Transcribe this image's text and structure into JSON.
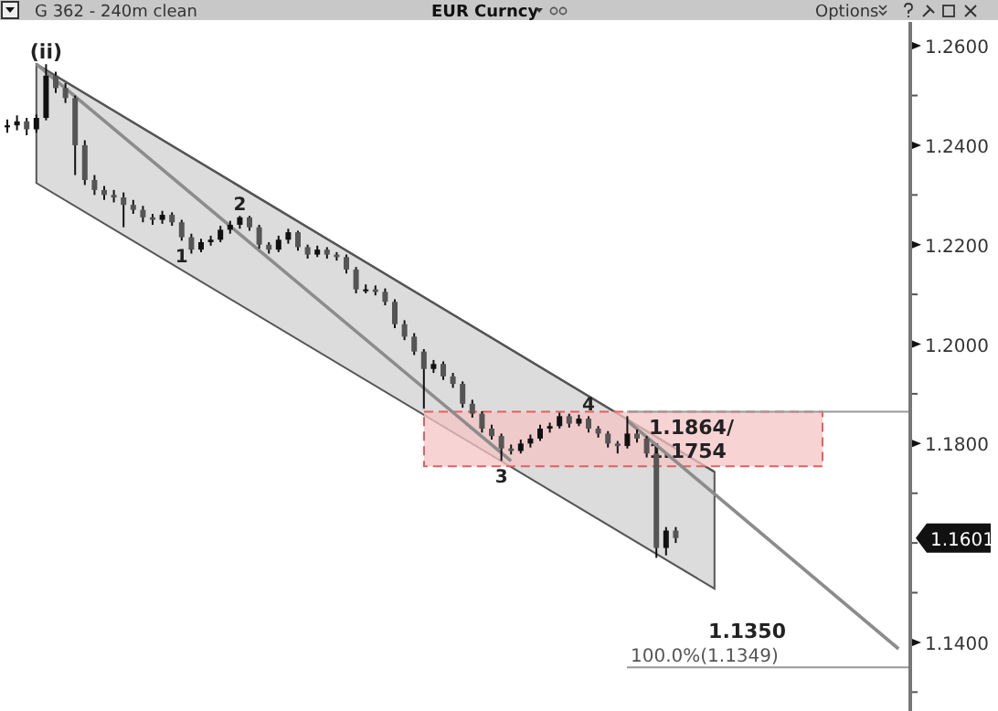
{
  "chart_data": {
    "type": "candlestick",
    "title": "EUR Curncy",
    "subtitle": "G 362 - 240m clean",
    "categories": [
      null,
      null,
      null,
      null,
      null,
      null,
      null,
      null,
      null,
      null,
      null,
      null,
      null,
      null,
      null,
      null,
      null,
      null,
      null,
      null,
      null,
      null,
      null,
      null,
      null,
      null,
      null,
      null,
      null,
      null,
      null,
      null,
      null,
      null,
      null,
      null,
      null,
      null,
      null,
      null,
      null,
      null,
      null,
      null,
      null,
      null,
      null,
      null,
      null,
      null,
      null,
      null,
      null,
      null,
      null,
      null,
      null,
      null,
      null,
      null,
      null,
      null,
      null,
      null,
      null,
      null,
      null,
      null,
      null,
      null,
      null,
      null,
      null,
      null,
      null,
      null,
      null,
      null,
      null,
      null,
      null,
      null,
      null,
      null,
      null,
      null,
      null,
      null,
      null,
      null,
      null,
      null,
      null
    ],
    "ohlc": [
      [
        1.2436,
        1.2452,
        1.2425,
        1.244
      ],
      [
        1.244,
        1.246,
        1.243,
        1.2448
      ],
      [
        1.2448,
        1.2455,
        1.242,
        1.2432
      ],
      [
        1.2432,
        1.2462,
        1.2425,
        1.2455
      ],
      [
        1.2455,
        1.2563,
        1.245,
        1.254
      ],
      [
        1.254,
        1.2548,
        1.2505,
        1.2515
      ],
      [
        1.2515,
        1.2525,
        1.2485,
        1.2495
      ],
      [
        1.2495,
        1.25,
        1.234,
        1.24
      ],
      [
        1.24,
        1.241,
        1.232,
        1.233
      ],
      [
        1.233,
        1.234,
        1.23,
        1.231
      ],
      [
        1.231,
        1.2318,
        1.229,
        1.23
      ],
      [
        1.23,
        1.231,
        1.2285,
        1.2295
      ],
      [
        1.2295,
        1.2305,
        1.2235,
        1.228
      ],
      [
        1.228,
        1.229,
        1.2262,
        1.227
      ],
      [
        1.227,
        1.2278,
        1.2245,
        1.2255
      ],
      [
        1.2255,
        1.2262,
        1.224,
        1.225
      ],
      [
        1.225,
        1.2268,
        1.2242,
        1.226
      ],
      [
        1.226,
        1.2265,
        1.2238,
        1.2245
      ],
      [
        1.2245,
        1.225,
        1.2208,
        1.2215
      ],
      [
        1.2215,
        1.2222,
        1.2182,
        1.219
      ],
      [
        1.219,
        1.2212,
        1.2185,
        1.2205
      ],
      [
        1.2205,
        1.2218,
        1.2198,
        1.221
      ],
      [
        1.221,
        1.2238,
        1.2205,
        1.223
      ],
      [
        1.223,
        1.2248,
        1.2222,
        1.224
      ],
      [
        1.224,
        1.2258,
        1.2232,
        1.2255
      ],
      [
        1.2255,
        1.2258,
        1.2228,
        1.2235
      ],
      [
        1.2235,
        1.224,
        1.2192,
        1.22
      ],
      [
        1.22,
        1.2205,
        1.2182,
        1.219
      ],
      [
        1.219,
        1.2218,
        1.2185,
        1.221
      ],
      [
        1.221,
        1.2232,
        1.2202,
        1.2225
      ],
      [
        1.2225,
        1.2228,
        1.2188,
        1.2195
      ],
      [
        1.2195,
        1.22,
        1.2172,
        1.218
      ],
      [
        1.218,
        1.2198,
        1.2175,
        1.219
      ],
      [
        1.219,
        1.2195,
        1.2172,
        1.218
      ],
      [
        1.218,
        1.2185,
        1.2168,
        1.2175
      ],
      [
        1.2175,
        1.218,
        1.2142,
        1.215
      ],
      [
        1.215,
        1.2155,
        1.2102,
        1.211
      ],
      [
        1.211,
        1.212,
        1.2102,
        1.211
      ],
      [
        1.211,
        1.2118,
        1.2098,
        1.2105
      ],
      [
        1.2105,
        1.2112,
        1.2078,
        1.2085
      ],
      [
        1.2085,
        1.209,
        1.2032,
        1.204
      ],
      [
        1.204,
        1.2048,
        1.2008,
        1.2015
      ],
      [
        1.2015,
        1.2022,
        1.1978,
        1.1985
      ],
      [
        1.1985,
        1.199,
        1.187,
        1.195
      ],
      [
        1.195,
        1.1968,
        1.1942,
        1.196
      ],
      [
        1.196,
        1.1965,
        1.1928,
        1.1935
      ],
      [
        1.1935,
        1.1942,
        1.1912,
        1.192
      ],
      [
        1.192,
        1.1925,
        1.1872,
        1.188
      ],
      [
        1.188,
        1.1888,
        1.1852,
        1.186
      ],
      [
        1.186,
        1.1865,
        1.1822,
        1.183
      ],
      [
        1.183,
        1.1838,
        1.1808,
        1.1815
      ],
      [
        1.1815,
        1.182,
        1.1765,
        1.179
      ],
      [
        1.179,
        1.1798,
        1.1778,
        1.1785
      ],
      [
        1.1785,
        1.1808,
        1.178,
        1.18
      ],
      [
        1.18,
        1.1818,
        1.1792,
        1.181
      ],
      [
        1.181,
        1.1838,
        1.1805,
        1.183
      ],
      [
        1.183,
        1.1842,
        1.1822,
        1.1835
      ],
      [
        1.1835,
        1.1862,
        1.183,
        1.1855
      ],
      [
        1.1855,
        1.186,
        1.1832,
        1.184
      ],
      [
        1.184,
        1.1858,
        1.1835,
        1.185
      ],
      [
        1.185,
        1.1855,
        1.1822,
        1.183
      ],
      [
        1.183,
        1.1835,
        1.1812,
        1.182
      ],
      [
        1.182,
        1.1825,
        1.1792,
        1.18
      ],
      [
        1.18,
        1.1805,
        1.178,
        1.1795
      ],
      [
        1.1795,
        1.1855,
        1.179,
        1.182
      ],
      [
        1.182,
        1.1828,
        1.1802,
        1.181
      ],
      [
        1.181,
        1.1815,
        1.1772,
        1.178
      ],
      [
        1.178,
        1.1785,
        1.157,
        1.159
      ],
      [
        1.159,
        1.1632,
        1.1575,
        1.1625
      ],
      [
        1.1625,
        1.1632,
        1.16,
        1.161
      ],
      null,
      null,
      null,
      null,
      null,
      null,
      null,
      null,
      null,
      null,
      null,
      null,
      null,
      null,
      null,
      null,
      null,
      null,
      null,
      null,
      null,
      null,
      null
    ],
    "series": [
      {
        "type": "line",
        "values": [
          null,
          null,
          null,
          1.2563,
          null,
          null,
          null,
          null,
          null,
          null,
          null,
          null,
          null,
          null,
          null,
          null,
          null,
          null,
          null,
          null,
          null,
          null,
          null,
          null,
          null,
          null,
          null,
          null,
          null,
          null,
          null,
          null,
          null,
          null,
          null,
          null,
          null,
          null,
          null,
          null,
          null,
          null,
          null,
          null,
          null,
          null,
          null,
          null,
          null,
          null,
          null,
          null,
          null,
          null,
          null,
          null,
          null,
          null,
          null,
          null,
          null,
          null,
          null,
          null,
          null,
          null,
          null,
          null,
          null,
          null,
          null,
          null,
          null,
          1.1743,
          null,
          null,
          null,
          null,
          null,
          null,
          null,
          null,
          null,
          null,
          null,
          null,
          null,
          null,
          null,
          null,
          null,
          null,
          null
        ],
        "upper": [
          null,
          null,
          null,
          1.2563,
          null,
          null,
          null,
          null,
          null,
          null,
          null,
          null,
          null,
          null,
          null,
          null,
          null,
          null,
          null,
          null,
          null,
          null,
          null,
          null,
          null,
          null,
          null,
          null,
          null,
          null,
          null,
          null,
          null,
          null,
          null,
          null,
          null,
          null,
          null,
          null,
          null,
          null,
          null,
          null,
          null,
          null,
          null,
          null,
          null,
          null,
          null,
          null,
          null,
          null,
          null,
          null,
          null,
          null,
          null,
          null,
          null,
          null,
          null,
          null,
          null,
          null,
          null,
          null,
          null,
          null,
          null,
          null,
          null,
          1.1743,
          null,
          null,
          null,
          null,
          null,
          null,
          null,
          null,
          null,
          null,
          null,
          null,
          null,
          null,
          null,
          null,
          null,
          null,
          null
        ],
        "lower": [
          null,
          null,
          null,
          1.2324,
          null,
          null,
          null,
          null,
          null,
          null,
          null,
          null,
          null,
          null,
          null,
          null,
          null,
          null,
          null,
          null,
          null,
          null,
          null,
          null,
          null,
          null,
          null,
          null,
          null,
          null,
          null,
          null,
          null,
          null,
          null,
          null,
          null,
          null,
          null,
          null,
          null,
          null,
          null,
          null,
          null,
          null,
          null,
          null,
          null,
          null,
          null,
          null,
          null,
          null,
          null,
          null,
          null,
          null,
          null,
          null,
          null,
          null,
          null,
          null,
          null,
          null,
          null,
          null,
          null,
          null,
          null,
          null,
          null,
          1.1508,
          null,
          null,
          null,
          null,
          null,
          null,
          null,
          null,
          null,
          null,
          null,
          null,
          null,
          null,
          null,
          null,
          null,
          null,
          null
        ],
        "color": "#555555"
      },
      {
        "type": "line",
        "values": [
          null,
          null,
          null,
          1.2563,
          null,
          null,
          null,
          null,
          null,
          null,
          null,
          null,
          null,
          null,
          null,
          null,
          null,
          null,
          null,
          null,
          null,
          null,
          null,
          null,
          null,
          null,
          null,
          null,
          null,
          null,
          null,
          null,
          null,
          null,
          null,
          null,
          null,
          null,
          null,
          null,
          null,
          null,
          null,
          null,
          null,
          null,
          null,
          null,
          null,
          null,
          null,
          null,
          1.1765,
          null,
          null,
          null,
          null,
          null,
          null,
          null,
          null,
          null,
          null,
          null,
          null,
          null,
          null,
          null,
          null,
          null,
          null,
          null,
          null,
          null,
          null,
          null,
          null,
          null,
          null,
          null,
          null,
          null,
          null,
          null,
          null,
          null,
          null,
          null,
          null,
          null,
          null,
          null,
          null
        ],
        "color": "#8c8c8c"
      },
      {
        "type": "line",
        "values": [
          null,
          null,
          null,
          null,
          null,
          null,
          null,
          null,
          null,
          null,
          null,
          null,
          null,
          null,
          null,
          null,
          null,
          null,
          null,
          null,
          null,
          null,
          null,
          null,
          null,
          null,
          null,
          null,
          null,
          null,
          null,
          null,
          null,
          null,
          null,
          null,
          null,
          null,
          null,
          null,
          null,
          null,
          null,
          null,
          null,
          null,
          null,
          null,
          null,
          null,
          null,
          null,
          null,
          null,
          null,
          null,
          null,
          null,
          null,
          null,
          null,
          null,
          null,
          null,
          1.1846,
          null,
          null,
          null,
          null,
          null,
          null,
          null,
          null,
          null,
          null,
          null,
          null,
          null,
          null,
          null,
          null,
          null,
          null,
          null,
          null,
          null,
          null,
          null,
          null,
          null,
          null,
          null,
          1.1387
        ],
        "color": "#8c8c8c"
      }
    ],
    "ylim": [
      1.1262,
      1.2648
    ],
    "yticks": [
      {
        "value": 1.13,
        "label": null
      },
      {
        "value": 1.14,
        "label": "1.1400"
      },
      {
        "value": 1.15,
        "label": null
      },
      {
        "value": 1.16,
        "label": null
      },
      {
        "value": 1.17,
        "label": null
      },
      {
        "value": 1.18,
        "label": "1.1800"
      },
      {
        "value": 1.19,
        "label": null
      },
      {
        "value": 1.2,
        "label": "1.2000"
      },
      {
        "value": 1.21,
        "label": null
      },
      {
        "value": 1.22,
        "label": "1.2200"
      },
      {
        "value": 1.23,
        "label": null
      },
      {
        "value": 1.24,
        "label": "1.2400"
      },
      {
        "value": 1.25,
        "label": null
      },
      {
        "value": 1.26,
        "label": "1.2600"
      }
    ],
    "tick_labels": "y",
    "bands": [
      {
        "axis": "y",
        "from": 1.1754,
        "to": 1.1864,
        "label": "1.1864/\n1.1754",
        "color": "#f6c4c4"
      }
    ],
    "ref_lines": [
      {
        "axis": "y",
        "value": 1.1864,
        "label": null,
        "color": "#999999"
      },
      {
        "axis": "y",
        "value": 1.135,
        "label": "1.1350",
        "color": "#999999"
      }
    ],
    "annotations": [
      {
        "text": "(ii)",
        "y": 1.2563
      },
      {
        "text": "1",
        "y": 1.2208
      },
      {
        "text": "2",
        "y": 1.2258
      },
      {
        "text": "3",
        "y": 1.1765
      },
      {
        "text": "4",
        "y": 1.1855
      },
      "1.1601",
      "100.0%(1.1349)",
      "Options"
    ]
  }
}
